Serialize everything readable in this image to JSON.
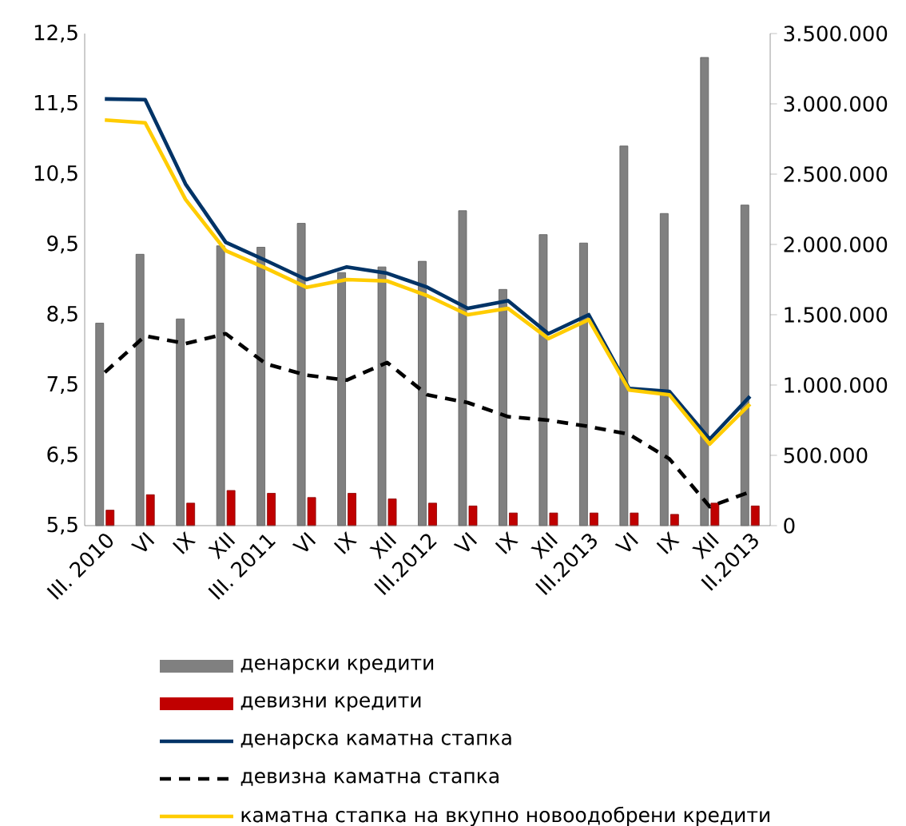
{
  "chart_data": {
    "type": "bar",
    "categories": [
      "III. 2010",
      "VI",
      "IX",
      "XII",
      "III. 2011",
      "VI",
      "IX",
      "XII",
      "III.2012",
      "VI",
      "IX",
      "XII",
      "III.2013",
      "VI",
      "IX",
      "XII",
      "II.2013"
    ],
    "series": [
      {
        "name": "денарски кредити",
        "axis": "y2",
        "color": "#808080",
        "values": [
          1440000,
          1930000,
          1470000,
          1990000,
          1980000,
          2150000,
          1800000,
          1840000,
          1880000,
          2240000,
          1680000,
          2070000,
          2010000,
          2700000,
          2220000,
          3330000,
          2280000
        ]
      },
      {
        "name": "девизни кредити",
        "axis": "y2",
        "color": "#c00000",
        "values": [
          110000,
          220000,
          160000,
          250000,
          230000,
          200000,
          230000,
          190000,
          160000,
          140000,
          90000,
          90000,
          90000,
          90000,
          80000,
          160000,
          140000
        ]
      },
      {
        "name": "денарска каматна стапка",
        "type": "line",
        "color": "#003366",
        "line_style": "solid",
        "values": [
          11.57,
          11.56,
          10.36,
          9.53,
          9.27,
          9.0,
          9.18,
          9.09,
          8.89,
          8.59,
          8.7,
          8.23,
          8.5,
          7.45,
          7.41,
          6.73,
          7.34
        ]
      },
      {
        "name": "девизна каматна стапка",
        "type": "line",
        "color": "#000000",
        "line_style": "dashed",
        "values": [
          7.68,
          8.2,
          8.09,
          8.23,
          7.8,
          7.64,
          7.57,
          7.82,
          7.36,
          7.25,
          7.05,
          7.0,
          6.91,
          6.8,
          6.45,
          5.77,
          5.98
        ]
      },
      {
        "name": "каматна стапка на вкупно новоодобрени кредити",
        "type": "line",
        "color": "#ffcc00",
        "line_style": "solid",
        "values": [
          11.27,
          11.23,
          10.14,
          9.41,
          9.16,
          8.89,
          9.0,
          8.98,
          8.77,
          8.5,
          8.59,
          8.16,
          8.43,
          7.43,
          7.36,
          6.66,
          7.23
        ]
      }
    ],
    "ylim": [
      5.5,
      12.5
    ],
    "yticks": [
      {
        "value": 5.5,
        "label": "5,5"
      },
      {
        "value": 6.5,
        "label": "6,5"
      },
      {
        "value": 7.5,
        "label": "7,5"
      },
      {
        "value": 8.5,
        "label": "8,5"
      },
      {
        "value": 9.5,
        "label": "9,5"
      },
      {
        "value": 10.5,
        "label": "10,5"
      },
      {
        "value": 11.5,
        "label": "11,5"
      },
      {
        "value": 12.5,
        "label": "12,5"
      }
    ],
    "y2lim": [
      0,
      3500000
    ],
    "y2ticks": [
      0,
      {
        "value": 500000,
        "label": "500.000"
      },
      {
        "value": 1000000,
        "label": "1.000.000"
      },
      {
        "value": 1500000,
        "label": "1.500.000"
      },
      {
        "value": 2000000,
        "label": "2.000.000"
      },
      {
        "value": 2500000,
        "label": "2.500.000"
      },
      {
        "value": 3000000,
        "label": "3.000.000"
      },
      {
        "value": 3500000,
        "label": "3.500.000"
      }
    ],
    "grid": false,
    "legend": "bottom"
  }
}
